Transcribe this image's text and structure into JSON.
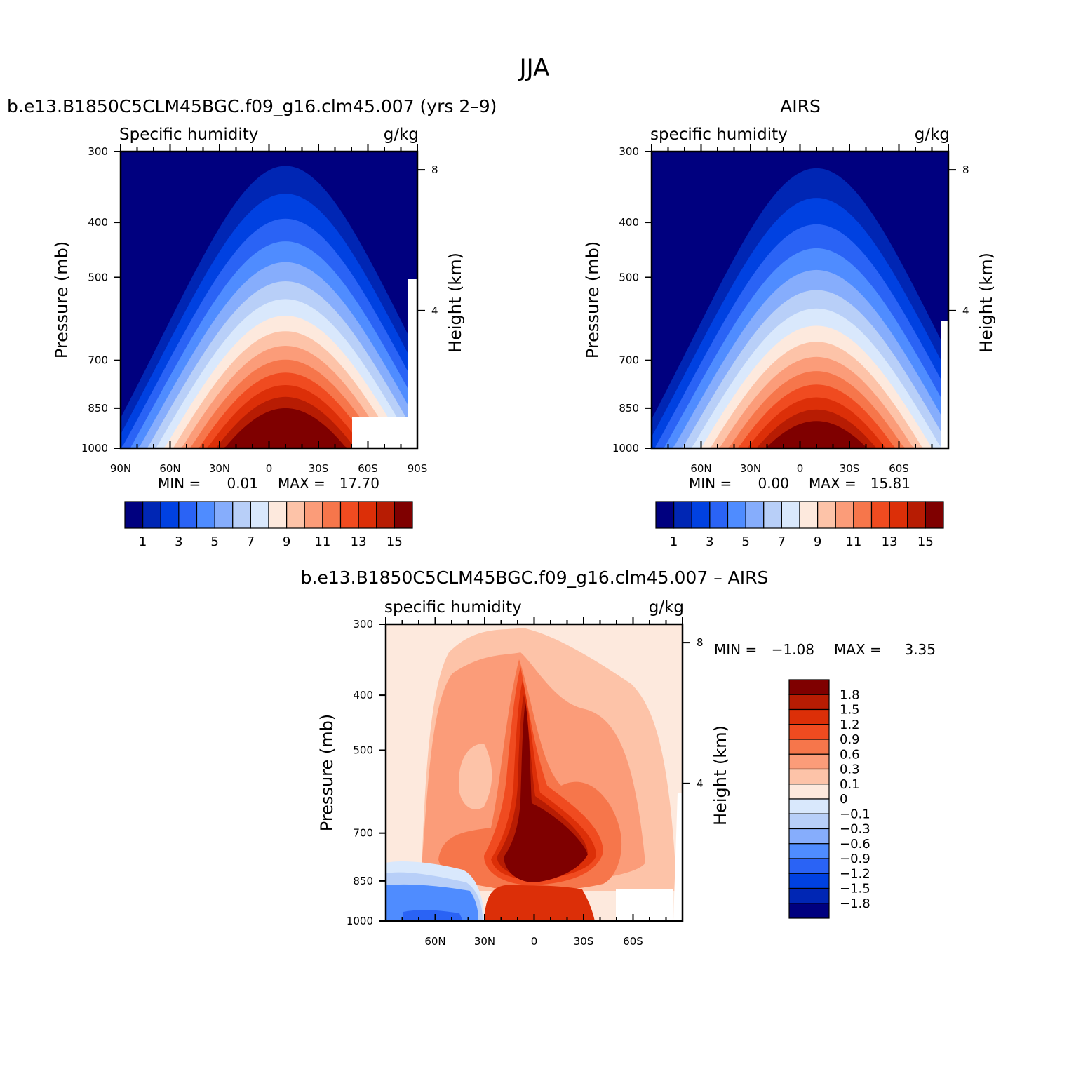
{
  "figure": {
    "title": "JJA"
  },
  "chart_data": [
    {
      "type": "contour",
      "title": "b.e13.B1850C5CLM45BGC.f09_g16.clm45.007 (yrs 2–9)",
      "left_string": "Specific humidity",
      "right_string": "g/kg",
      "xlabel": "",
      "ylabel": "Pressure (mb)",
      "y2label": "Height (km)",
      "x_ticks": [
        "90N",
        "60N",
        "30N",
        "0",
        "30S",
        "60S",
        "90S"
      ],
      "x_tick_lats": [
        90,
        60,
        30,
        0,
        -30,
        -60,
        -90
      ],
      "xlim": [
        90,
        -90
      ],
      "y_ticks": [
        300,
        400,
        500,
        700,
        850,
        1000
      ],
      "ylim": [
        1000,
        300
      ],
      "y2_ticks": [
        "8",
        "4"
      ],
      "y2_tick_km": [
        8,
        4
      ],
      "stats": {
        "min_label": "MIN =",
        "min": "0.01",
        "max_label": "MAX =",
        "max": "17.70"
      },
      "peak": {
        "lat": -10,
        "value": 17.7
      },
      "colorbar": {
        "labels": [
          "1",
          "3",
          "5",
          "7",
          "9",
          "11",
          "13",
          "15"
        ],
        "colors": [
          "#00007f",
          "#0026b4",
          "#0041e1",
          "#2a63f5",
          "#4f8cff",
          "#86adfc",
          "#b8cff8",
          "#d9e8fc",
          "#fde9dd",
          "#fdc3a8",
          "#fb9c79",
          "#f6764b",
          "#f04b20",
          "#dc2f08",
          "#b71c03",
          "#7f0000"
        ]
      }
    },
    {
      "type": "contour",
      "title": "AIRS",
      "left_string": "specific humidity",
      "right_string": "g/kg",
      "xlabel": "",
      "ylabel": "Pressure (mb)",
      "y2label": "Height (km)",
      "x_ticks": [
        "60N",
        "30N",
        "0",
        "30S",
        "60S"
      ],
      "x_tick_lats": [
        60,
        30,
        0,
        -30,
        -60
      ],
      "xlim": [
        90,
        -90
      ],
      "y_ticks": [
        300,
        400,
        500,
        700,
        850,
        1000
      ],
      "ylim": [
        1000,
        300
      ],
      "y2_ticks": [
        "8",
        "4"
      ],
      "y2_tick_km": [
        8,
        4
      ],
      "stats": {
        "min_label": "MIN =",
        "min": "0.00",
        "max_label": "MAX =",
        "max": "15.81"
      },
      "peak": {
        "lat": -10,
        "value": 15.81
      },
      "colorbar": {
        "labels": [
          "1",
          "3",
          "5",
          "7",
          "9",
          "11",
          "13",
          "15"
        ],
        "colors": [
          "#00007f",
          "#0026b4",
          "#0041e1",
          "#2a63f5",
          "#4f8cff",
          "#86adfc",
          "#b8cff8",
          "#d9e8fc",
          "#fde9dd",
          "#fdc3a8",
          "#fb9c79",
          "#f6764b",
          "#f04b20",
          "#dc2f08",
          "#b71c03",
          "#7f0000"
        ]
      }
    },
    {
      "type": "contour",
      "title": "b.e13.B1850C5CLM45BGC.f09_g16.clm45.007 – AIRS",
      "left_string": "specific humidity",
      "right_string": "g/kg",
      "xlabel": "",
      "ylabel": "Pressure (mb)",
      "y2label": "Height (km)",
      "x_ticks": [
        "60N",
        "30N",
        "0",
        "30S",
        "60S"
      ],
      "x_tick_lats": [
        60,
        30,
        0,
        -30,
        -60
      ],
      "xlim": [
        90,
        -90
      ],
      "y_ticks": [
        300,
        400,
        500,
        700,
        850,
        1000
      ],
      "ylim": [
        1000,
        300
      ],
      "y2_ticks": [
        "8",
        "4"
      ],
      "y2_tick_km": [
        8,
        4
      ],
      "stats": {
        "min_label": "MIN =",
        "min": "−1.08",
        "max_label": "MAX =",
        "max": "3.35"
      },
      "colorbar": {
        "labels": [
          "1.8",
          "1.5",
          "1.2",
          "0.9",
          "0.6",
          "0.3",
          "0.1",
          "0",
          "−0.1",
          "−0.3",
          "−0.6",
          "−0.9",
          "−1.2",
          "−1.5",
          "−1.8"
        ],
        "colors": [
          "#7f0000",
          "#b71c03",
          "#dc2f08",
          "#f04b20",
          "#f6764b",
          "#fb9c79",
          "#fdc3a8",
          "#fde9dd",
          "#d9e8fc",
          "#b8cff8",
          "#86adfc",
          "#4f8cff",
          "#2a63f5",
          "#0041e1",
          "#0026b4",
          "#00007f"
        ]
      }
    }
  ]
}
